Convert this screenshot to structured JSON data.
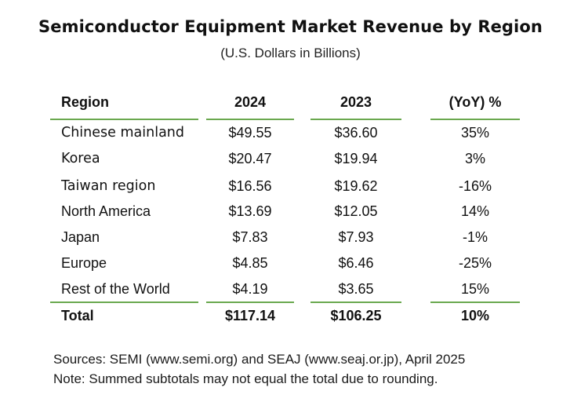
{
  "title": "Semiconductor Equipment Market Revenue by Region",
  "subtitle": "(U.S. Dollars in Billions)",
  "table": {
    "headers": {
      "region": "Region",
      "y2024": "2024",
      "y2023": "2023",
      "yoy": "(YoY) %"
    },
    "rows": [
      {
        "region": "Chinese mainland",
        "y2024": "$49.55",
        "y2023": "$36.60",
        "yoy": "35%"
      },
      {
        "region": "Korea",
        "y2024": "$20.47",
        "y2023": "$19.94",
        "yoy": "3%"
      },
      {
        "region": "Taiwan region",
        "y2024": "$16.56",
        "y2023": "$19.62",
        "yoy": "-16%"
      },
      {
        "region": "North America",
        "y2024": "$13.69",
        "y2023": "$12.05",
        "yoy": "14%"
      },
      {
        "region": "Japan",
        "y2024": "$7.83",
        "y2023": "$7.93",
        "yoy": "-1%"
      },
      {
        "region": "Europe",
        "y2024": "$4.85",
        "y2023": "$6.46",
        "yoy": "-25%"
      },
      {
        "region": "Rest of the World",
        "y2024": "$4.19",
        "y2023": "$3.65",
        "yoy": "15%"
      }
    ],
    "total": {
      "region": "Total",
      "y2024": "$117.14",
      "y2023": "$106.25",
      "yoy": "10%"
    }
  },
  "footnotes": {
    "sources": "Sources: SEMI (www.semi.org) and SEAJ (www.seaj.or.jp), April 2025",
    "note": "Note: Summed subtotals may not equal the total due to rounding."
  },
  "colors": {
    "rule": "#6aa84f",
    "text": "#111111"
  }
}
